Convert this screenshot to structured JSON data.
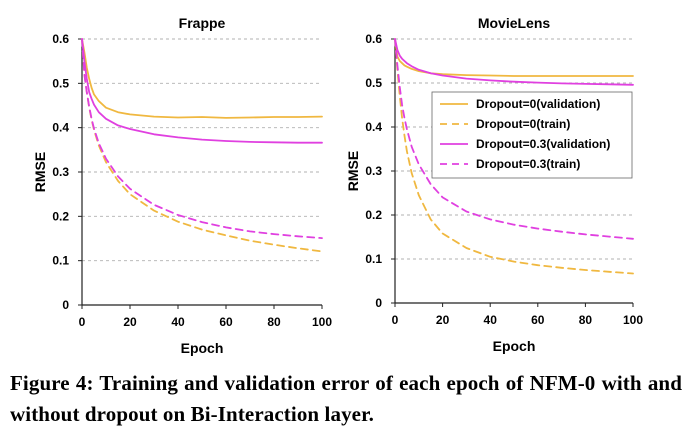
{
  "chart_data": [
    {
      "type": "line",
      "title": "Frappe",
      "xlabel": "Epoch",
      "ylabel": "RMSE",
      "xlim": [
        0,
        100
      ],
      "ylim": [
        0,
        0.6
      ],
      "xticks": [
        "0",
        "20",
        "40",
        "60",
        "80",
        "100"
      ],
      "yticks": [
        "0",
        "0.1",
        "0.2",
        "0.3",
        "0.4",
        "0.5",
        "0.6"
      ],
      "grid": true,
      "x": [
        0,
        1,
        2,
        3,
        4,
        5,
        7,
        10,
        15,
        20,
        30,
        40,
        50,
        60,
        70,
        80,
        90,
        100
      ],
      "series": [
        {
          "name": "Dropout=0(validation)",
          "color": "#F0B840",
          "dash": "solid",
          "values": [
            0.6,
            0.57,
            0.535,
            0.51,
            0.49,
            0.475,
            0.46,
            0.445,
            0.435,
            0.43,
            0.425,
            0.423,
            0.424,
            0.422,
            0.423,
            0.424,
            0.424,
            0.425
          ]
        },
        {
          "name": "Dropout=0(train)",
          "color": "#F0B840",
          "dash": "dashed",
          "values": [
            0.6,
            0.52,
            0.48,
            0.445,
            0.418,
            0.395,
            0.36,
            0.322,
            0.28,
            0.25,
            0.213,
            0.188,
            0.17,
            0.157,
            0.145,
            0.136,
            0.128,
            0.121
          ]
        },
        {
          "name": "Dropout=0.3(validation)",
          "color": "#E040E0",
          "dash": "solid",
          "values": [
            0.6,
            0.55,
            0.51,
            0.48,
            0.465,
            0.452,
            0.435,
            0.42,
            0.405,
            0.397,
            0.385,
            0.378,
            0.373,
            0.37,
            0.368,
            0.367,
            0.366,
            0.366
          ]
        },
        {
          "name": "Dropout=0.3(train)",
          "color": "#E040E0",
          "dash": "dashed",
          "values": [
            0.6,
            0.52,
            0.48,
            0.447,
            0.42,
            0.398,
            0.365,
            0.33,
            0.29,
            0.262,
            0.226,
            0.203,
            0.187,
            0.175,
            0.166,
            0.16,
            0.155,
            0.151
          ]
        }
      ]
    },
    {
      "type": "line",
      "title": "MovieLens",
      "xlabel": "Epoch",
      "ylabel": "RMSE",
      "xlim": [
        0,
        100
      ],
      "ylim": [
        0,
        0.6
      ],
      "xticks": [
        "0",
        "20",
        "40",
        "60",
        "80",
        "100"
      ],
      "yticks": [
        "0",
        "0.1",
        "0.2",
        "0.3",
        "0.4",
        "0.5",
        "0.6"
      ],
      "grid": true,
      "legend": "right, inside",
      "x": [
        0,
        1,
        2,
        3,
        4,
        5,
        7,
        10,
        15,
        20,
        30,
        40,
        50,
        60,
        70,
        80,
        90,
        100
      ],
      "series": [
        {
          "name": "Dropout=0(validation)",
          "color": "#F0B840",
          "dash": "solid",
          "values": [
            0.6,
            0.56,
            0.55,
            0.545,
            0.54,
            0.537,
            0.532,
            0.527,
            0.522,
            0.52,
            0.518,
            0.517,
            0.516,
            0.516,
            0.516,
            0.516,
            0.516,
            0.516
          ]
        },
        {
          "name": "Dropout=0(train)",
          "color": "#F0B840",
          "dash": "dashed",
          "values": [
            0.6,
            0.53,
            0.47,
            0.42,
            0.38,
            0.345,
            0.295,
            0.245,
            0.19,
            0.158,
            0.125,
            0.105,
            0.094,
            0.086,
            0.08,
            0.075,
            0.071,
            0.067
          ]
        },
        {
          "name": "Dropout=0.3(validation)",
          "color": "#E040E0",
          "dash": "solid",
          "values": [
            0.6,
            0.575,
            0.562,
            0.555,
            0.55,
            0.545,
            0.538,
            0.53,
            0.522,
            0.517,
            0.51,
            0.506,
            0.503,
            0.501,
            0.499,
            0.498,
            0.497,
            0.496
          ]
        },
        {
          "name": "Dropout=0.3(train)",
          "color": "#E040E0",
          "dash": "dashed",
          "values": [
            0.6,
            0.54,
            0.49,
            0.45,
            0.42,
            0.395,
            0.355,
            0.315,
            0.27,
            0.24,
            0.208,
            0.19,
            0.178,
            0.169,
            0.162,
            0.156,
            0.151,
            0.146
          ]
        }
      ]
    }
  ],
  "caption": "Figure 4:  Training and validation error of each epoch of NFM-0 with and without dropout on Bi-Interaction layer."
}
